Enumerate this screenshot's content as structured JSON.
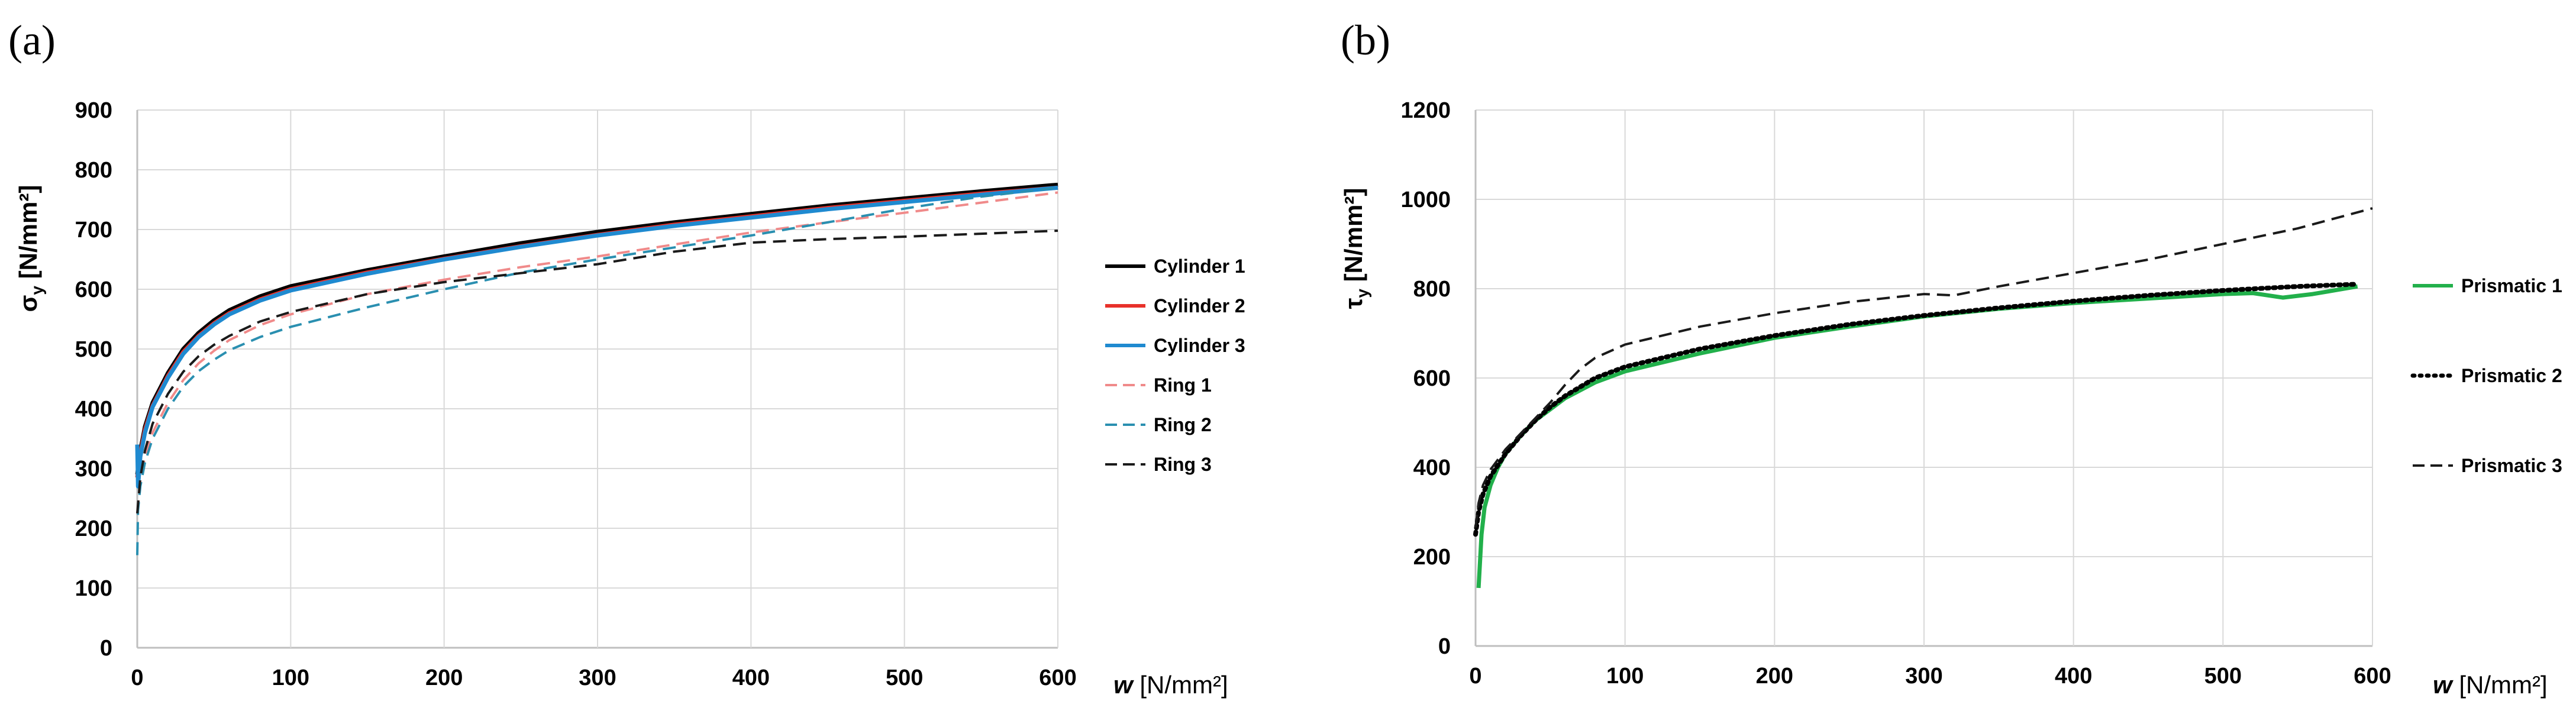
{
  "chart_data": [
    {
      "type": "line",
      "panel_label": "(a)",
      "ylabel_main": "σ",
      "ylabel_sub": "y",
      "ylabel_unit": " [N/mm²]",
      "xlabel_var": "w",
      "xlabel_unit": " [N/mm²]",
      "xlim": [
        0,
        600
      ],
      "ylim": [
        0,
        900
      ],
      "xticks": [
        "0",
        "100",
        "200",
        "300",
        "400",
        "500",
        "600"
      ],
      "yticks": [
        "0",
        "100",
        "200",
        "300",
        "400",
        "500",
        "600",
        "700",
        "800",
        "900"
      ],
      "grid": true,
      "legend_position": "right",
      "series": [
        {
          "name": "Cylinder 1",
          "color": "#000000",
          "style": "solid",
          "x": [
            0,
            2,
            5,
            10,
            20,
            30,
            40,
            50,
            60,
            80,
            100,
            150,
            200,
            250,
            300,
            350,
            400,
            450,
            500,
            550,
            600
          ],
          "y": [
            290,
            330,
            370,
            410,
            460,
            500,
            527,
            548,
            565,
            588,
            605,
            632,
            655,
            677,
            696,
            712,
            726,
            740,
            752,
            764,
            775
          ]
        },
        {
          "name": "Cylinder 2",
          "color": "#e8312a",
          "style": "solid",
          "x": [
            0,
            2,
            5,
            10,
            20,
            30,
            40,
            50,
            60,
            80,
            100,
            150,
            200,
            250,
            300,
            350,
            400,
            450,
            500,
            550,
            600
          ],
          "y": [
            285,
            325,
            365,
            405,
            455,
            495,
            522,
            543,
            560,
            583,
            600,
            628,
            651,
            672,
            691,
            708,
            722,
            736,
            748,
            760,
            770
          ]
        },
        {
          "name": "Cylinder 3",
          "color": "#1f8ad0",
          "style": "solid",
          "x": [
            0,
            0.5,
            2,
            5,
            10,
            20,
            30,
            40,
            50,
            60,
            80,
            100,
            150,
            200,
            250,
            300,
            350,
            400,
            450,
            500,
            550,
            600
          ],
          "y": [
            340,
            270,
            320,
            360,
            403,
            452,
            492,
            520,
            541,
            558,
            581,
            598,
            626,
            650,
            671,
            690,
            706,
            720,
            734,
            746,
            758,
            770
          ]
        },
        {
          "name": "Ring 1",
          "color": "#f08a8a",
          "style": "dashed",
          "x": [
            0,
            2,
            5,
            10,
            20,
            30,
            40,
            50,
            60,
            80,
            100,
            150,
            200,
            250,
            300,
            350,
            400,
            450,
            500,
            550,
            600
          ],
          "y": [
            225,
            280,
            320,
            360,
            410,
            448,
            476,
            497,
            515,
            540,
            558,
            592,
            616,
            637,
            655,
            675,
            695,
            712,
            728,
            745,
            762
          ]
        },
        {
          "name": "Ring 2",
          "color": "#2a8fb0",
          "style": "dashed",
          "x": [
            0,
            0.5,
            2,
            5,
            10,
            20,
            30,
            40,
            50,
            60,
            80,
            100,
            150,
            200,
            250,
            300,
            350,
            400,
            450,
            500,
            550,
            600
          ],
          "y": [
            155,
            230,
            270,
            310,
            350,
            400,
            437,
            463,
            482,
            498,
            520,
            537,
            570,
            600,
            628,
            650,
            670,
            690,
            712,
            735,
            755,
            770
          ]
        },
        {
          "name": "Ring 3",
          "color": "#1a1a1a",
          "style": "dashed",
          "x": [
            0,
            2,
            5,
            10,
            20,
            30,
            40,
            50,
            60,
            80,
            100,
            150,
            200,
            250,
            300,
            350,
            400,
            450,
            500,
            550,
            600
          ],
          "y": [
            225,
            285,
            330,
            375,
            425,
            462,
            488,
            507,
            522,
            546,
            562,
            592,
            612,
            627,
            642,
            663,
            678,
            684,
            688,
            693,
            698
          ]
        }
      ]
    },
    {
      "type": "line",
      "panel_label": "(b)",
      "ylabel_main": "τ",
      "ylabel_sub": "y",
      "ylabel_unit": " [N/mm²]",
      "xlabel_var": "w",
      "xlabel_unit": " [N/mm²]",
      "xlim": [
        0,
        600
      ],
      "ylim": [
        0,
        1200
      ],
      "xticks": [
        "0",
        "100",
        "200",
        "300",
        "400",
        "500",
        "600"
      ],
      "yticks": [
        "0",
        "200",
        "400",
        "600",
        "800",
        "1000",
        "1200"
      ],
      "grid": true,
      "legend_position": "right",
      "series": [
        {
          "name": "Prismatic 1",
          "color": "#22b04b",
          "style": "solid",
          "x": [
            2,
            4,
            6,
            10,
            15,
            20,
            30,
            40,
            50,
            60,
            80,
            100,
            150,
            200,
            250,
            300,
            350,
            400,
            450,
            500,
            520,
            540,
            560,
            590
          ],
          "y": [
            130,
            250,
            310,
            360,
            400,
            430,
            470,
            505,
            530,
            555,
            590,
            615,
            655,
            690,
            715,
            738,
            755,
            768,
            778,
            788,
            790,
            780,
            788,
            805
          ]
        },
        {
          "name": "Prismatic 2",
          "color": "#000000",
          "style": "dotted",
          "x": [
            0,
            2,
            5,
            10,
            20,
            30,
            40,
            50,
            60,
            80,
            100,
            150,
            200,
            250,
            300,
            350,
            400,
            450,
            500,
            550,
            590
          ],
          "y": [
            250,
            300,
            340,
            380,
            430,
            470,
            505,
            535,
            560,
            600,
            625,
            665,
            695,
            720,
            740,
            757,
            772,
            785,
            796,
            805,
            810
          ]
        },
        {
          "name": "Prismatic 3",
          "color": "#1a1a1a",
          "style": "dashed",
          "x": [
            0,
            2,
            5,
            10,
            20,
            30,
            40,
            50,
            60,
            70,
            80,
            100,
            150,
            200,
            250,
            300,
            320,
            350,
            400,
            450,
            500,
            550,
            600
          ],
          "y": [
            265,
            320,
            360,
            395,
            440,
            475,
            510,
            545,
            585,
            620,
            645,
            675,
            715,
            745,
            770,
            788,
            785,
            805,
            835,
            865,
            900,
            935,
            980
          ]
        }
      ]
    }
  ]
}
